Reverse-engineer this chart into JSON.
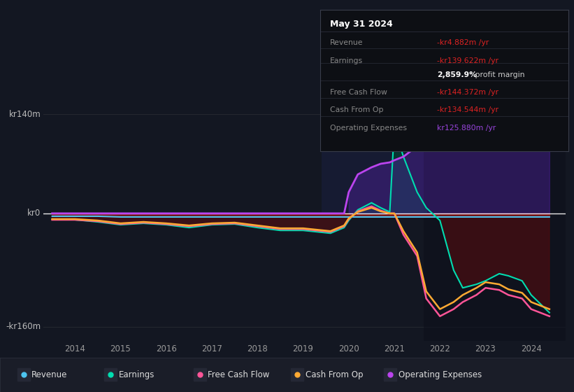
{
  "bg_color": "#131722",
  "grid_color": "#252830",
  "ylim": [
    -180,
    160
  ],
  "xlim": [
    2013.3,
    2024.75
  ],
  "ytick_labels": [
    "kr140m",
    "kr0",
    "-kr160m"
  ],
  "ytick_vals": [
    140,
    0,
    -160
  ],
  "xtick_vals": [
    2014,
    2015,
    2016,
    2017,
    2018,
    2019,
    2020,
    2021,
    2022,
    2023,
    2024
  ],
  "colors": {
    "revenue": "#4dc5f0",
    "earnings": "#00ddb0",
    "free_cash_flow": "#ff5598",
    "cash_from_op": "#ffaa33",
    "op_expenses": "#bb44ee",
    "revenue_fill_neg": "#7a0a0a",
    "earnings_fill_pos": "#005544",
    "earnings_fill_neg": "#5a0808",
    "op_expenses_fill": "#441188"
  },
  "tooltip": {
    "date": "May 31 2024",
    "bg": "#0d0f14",
    "border": "#333644",
    "rows": [
      {
        "label": "Revenue",
        "value": "-kr4.882m /yr",
        "lcolor": "#888888",
        "vcolor": "#dd2222"
      },
      {
        "label": "Earnings",
        "value": "-kr139.622m /yr",
        "lcolor": "#888888",
        "vcolor": "#dd2222"
      },
      {
        "label": "",
        "value": "2,859.9%",
        "suffix": " profit margin",
        "lcolor": "#888888",
        "vcolor": "#ffffff"
      },
      {
        "label": "Free Cash Flow",
        "value": "-kr144.372m /yr",
        "lcolor": "#888888",
        "vcolor": "#dd2222"
      },
      {
        "label": "Cash From Op",
        "value": "-kr134.544m /yr",
        "lcolor": "#888888",
        "vcolor": "#dd2222"
      },
      {
        "label": "Operating Expenses",
        "value": "kr125.880m /yr",
        "lcolor": "#888888",
        "vcolor": "#9944dd"
      }
    ]
  },
  "legend": [
    {
      "label": "Revenue",
      "color": "#4dc5f0"
    },
    {
      "label": "Earnings",
      "color": "#00ddb0"
    },
    {
      "label": "Free Cash Flow",
      "color": "#ff5598"
    },
    {
      "label": "Cash From Op",
      "color": "#ffaa33"
    },
    {
      "label": "Operating Expenses",
      "color": "#bb44ee"
    }
  ],
  "x": [
    2013.5,
    2014.0,
    2014.5,
    2015.0,
    2015.5,
    2016.0,
    2016.5,
    2017.0,
    2017.5,
    2018.0,
    2018.5,
    2019.0,
    2019.3,
    2019.6,
    2019.9,
    2020.0,
    2020.2,
    2020.5,
    2020.7,
    2020.9,
    2021.0,
    2021.2,
    2021.5,
    2021.7,
    2022.0,
    2022.3,
    2022.5,
    2022.8,
    2023.0,
    2023.3,
    2023.5,
    2023.8,
    2024.0,
    2024.4
  ],
  "revenue": [
    -4,
    -4,
    -4,
    -5,
    -5,
    -5,
    -5,
    -5,
    -5,
    -5,
    -5,
    -5,
    -5,
    -5,
    -5,
    -5,
    -5,
    -5,
    -5,
    -5,
    -5,
    -5,
    -5,
    -5,
    -5,
    -5,
    -5,
    -5,
    -5,
    -5,
    -5,
    -5,
    -5,
    -5
  ],
  "earnings": [
    -8,
    -9,
    -12,
    -16,
    -14,
    -16,
    -20,
    -16,
    -15,
    -20,
    -24,
    -24,
    -26,
    -28,
    -20,
    -10,
    5,
    15,
    8,
    2,
    120,
    80,
    30,
    8,
    -10,
    -80,
    -105,
    -100,
    -95,
    -85,
    -88,
    -95,
    -115,
    -140
  ],
  "free_cash_flow": [
    -9,
    -9,
    -11,
    -15,
    -13,
    -15,
    -18,
    -15,
    -14,
    -18,
    -22,
    -22,
    -24,
    -26,
    -18,
    -8,
    3,
    10,
    4,
    0,
    0,
    -30,
    -60,
    -120,
    -145,
    -135,
    -125,
    -115,
    -105,
    -108,
    -115,
    -120,
    -135,
    -145
  ],
  "cash_from_op": [
    -8,
    -8,
    -10,
    -14,
    -12,
    -14,
    -17,
    -14,
    -13,
    -17,
    -21,
    -21,
    -23,
    -25,
    -17,
    -7,
    2,
    8,
    3,
    0,
    0,
    -25,
    -55,
    -110,
    -135,
    -125,
    -115,
    -105,
    -97,
    -100,
    -107,
    -112,
    -125,
    -135
  ],
  "op_expenses": [
    0,
    0,
    0,
    0,
    0,
    0,
    0,
    0,
    0,
    0,
    0,
    0,
    0,
    0,
    0,
    30,
    55,
    65,
    70,
    72,
    75,
    80,
    95,
    105,
    110,
    108,
    104,
    100,
    103,
    108,
    112,
    116,
    120,
    126
  ]
}
